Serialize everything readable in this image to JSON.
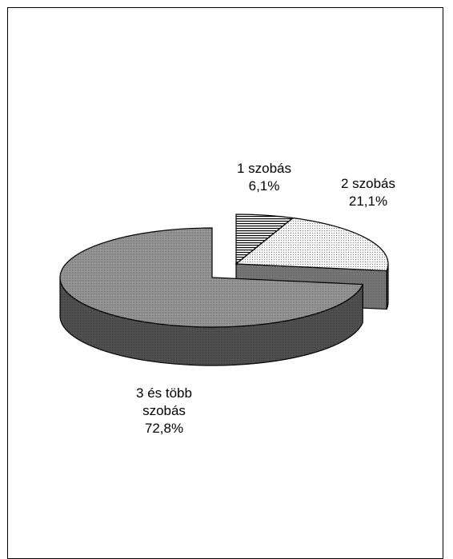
{
  "chart_data": {
    "type": "pie",
    "title": "",
    "categories": [
      "1 szobás",
      "2 szobás",
      "3 és több szobás"
    ],
    "values": [
      6.1,
      21.1,
      72.8
    ],
    "labels": [
      {
        "name_lines": [
          "1 szobás"
        ],
        "value": "6,1%"
      },
      {
        "name_lines": [
          "2 szobás"
        ],
        "value": "21,1%"
      },
      {
        "name_lines": [
          "3 és több",
          "szobás"
        ],
        "value": "72,8%"
      }
    ],
    "pie_3d": true,
    "exploded_slice": "3 és több szobás",
    "legend": "none",
    "slice_patterns": [
      "horizontal-lines",
      "light-dots",
      "dark-dots"
    ]
  }
}
